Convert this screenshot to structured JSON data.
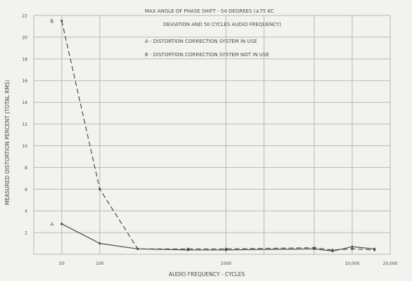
{
  "chart_data": {
    "type": "line",
    "title": "MAX ANGLE OF PHASE SHIFT - 54 DEGREES (±75 KC DEVIATION AND 50 CYCLES AUDIO FREQUENCY)",
    "title_lines": [
      "MAX  ANGLE  OF  PHASE  SHIFT - 54 DEGREES  (±75 KC",
      "DEVIATION  AND  50 CYCLES  AUDIO  FREQUENCY)"
    ],
    "xlabel": "AUDIO FREQUENCY - CYCLES",
    "ylabel": "MEASURED DISTORTION PERCENT (TOTAL RMS)",
    "xscale": "log",
    "xlim": [
      30,
      20000
    ],
    "ylim": [
      0,
      22
    ],
    "x_ticks": [
      {
        "value": 50,
        "label": "50"
      },
      {
        "value": 100,
        "label": "100"
      },
      {
        "value": 1000,
        "label": "1000"
      },
      {
        "value": 10000,
        "label": "10,000"
      },
      {
        "value": 20000,
        "label": "20,000"
      }
    ],
    "y_ticks": [
      {
        "value": 2,
        "label": "2"
      },
      {
        "value": 4,
        "label": "4"
      },
      {
        "value": 6,
        "label": "6"
      },
      {
        "value": 8,
        "label": "8"
      },
      {
        "value": 10,
        "label": "10"
      },
      {
        "value": 12,
        "label": "12"
      },
      {
        "value": 14,
        "label": "14"
      },
      {
        "value": 16,
        "label": "16"
      },
      {
        "value": 18,
        "label": "18"
      },
      {
        "value": 20,
        "label": "20"
      },
      {
        "value": 22,
        "label": "22"
      }
    ],
    "grid": true,
    "legend_position": "top-right",
    "legend": [
      "A - DISTORTION CORRECTION SYSTEM IN USE",
      "B - DISTORTION CORRECTION SYSTEM NOT IN USE"
    ],
    "series": [
      {
        "name": "A",
        "style": "solid",
        "x": [
          50,
          100,
          200,
          500,
          1000,
          5000,
          7000,
          10000,
          15000
        ],
        "y": [
          2.8,
          1.0,
          0.5,
          0.4,
          0.4,
          0.5,
          0.3,
          0.7,
          0.5
        ]
      },
      {
        "name": "B",
        "style": "dashed",
        "x": [
          50,
          100,
          200,
          500,
          1000,
          5000,
          7000,
          10000,
          15000
        ],
        "y": [
          21.5,
          6.0,
          0.5,
          0.5,
          0.5,
          0.6,
          0.4,
          0.5,
          0.4
        ]
      }
    ],
    "annotations": [
      {
        "text": "A",
        "near_series": "A"
      },
      {
        "text": "B",
        "near_series": "B"
      }
    ],
    "colors": {
      "background": "#f2f2ee",
      "grid": "#b9b9b4",
      "line": "#4a4a4a",
      "text": "#4a4a4a"
    }
  }
}
